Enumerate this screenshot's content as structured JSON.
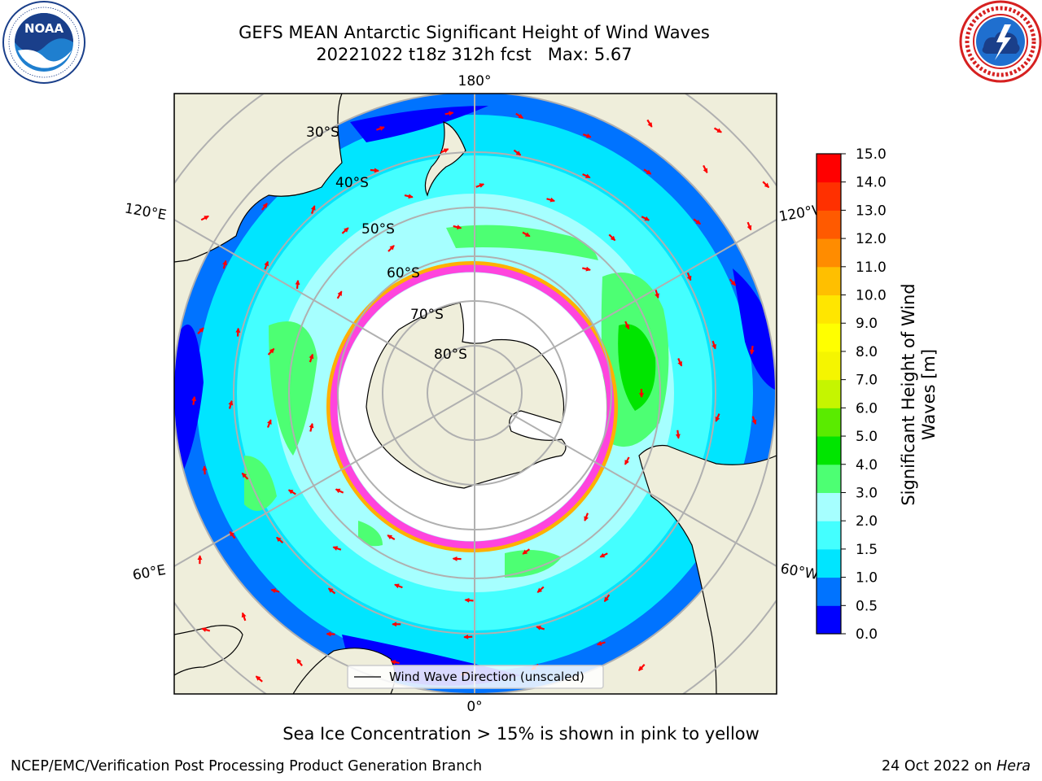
{
  "header": {
    "title_line1": "GEFS MEAN Antarctic Significant Height of Wind Waves",
    "title_line2": "20221022 t18z 312h fcst   Max: 5.67"
  },
  "logos": {
    "left": "noaa-logo",
    "right": "national-weather-service-logo"
  },
  "map": {
    "projection": "south-polar-stereographic",
    "parallel_labels": [
      "30°S",
      "40°S",
      "50°S",
      "60°S",
      "70°S",
      "80°S"
    ],
    "meridian_labels": {
      "top": "180°",
      "bottom": "0°",
      "left_upper": "120°E",
      "left_lower": "60°E",
      "right_upper": "120°W",
      "right_lower": "60°W"
    },
    "legend_label": "Wind Wave Direction (unscaled)"
  },
  "colorbar": {
    "label": "Significant Height of Wind Waves [m]",
    "ticks": [
      "0.0",
      "0.5",
      "1.0",
      "1.5",
      "2.0",
      "3.0",
      "4.0",
      "5.0",
      "6.0",
      "7.0",
      "8.0",
      "9.0",
      "10.0",
      "11.0",
      "12.0",
      "13.0",
      "14.0",
      "15.0"
    ],
    "colors": [
      "#0000ff",
      "#0073ff",
      "#00e5ff",
      "#44ffff",
      "#a6ffff",
      "#4dff73",
      "#00e500",
      "#5aeb00",
      "#c5f500",
      "#f5f500",
      "#ffff00",
      "#ffe600",
      "#ffbf00",
      "#ff8c00",
      "#ff5a00",
      "#ff3000",
      "#ff0000"
    ]
  },
  "note": "Sea Ice Concentration > 15% is shown in pink to yellow",
  "footer": {
    "left": "NCEP/EMC/Verification Post Processing Product Generation Branch",
    "right_date": "24 Oct 2022 on ",
    "right_host": "Hera"
  }
}
